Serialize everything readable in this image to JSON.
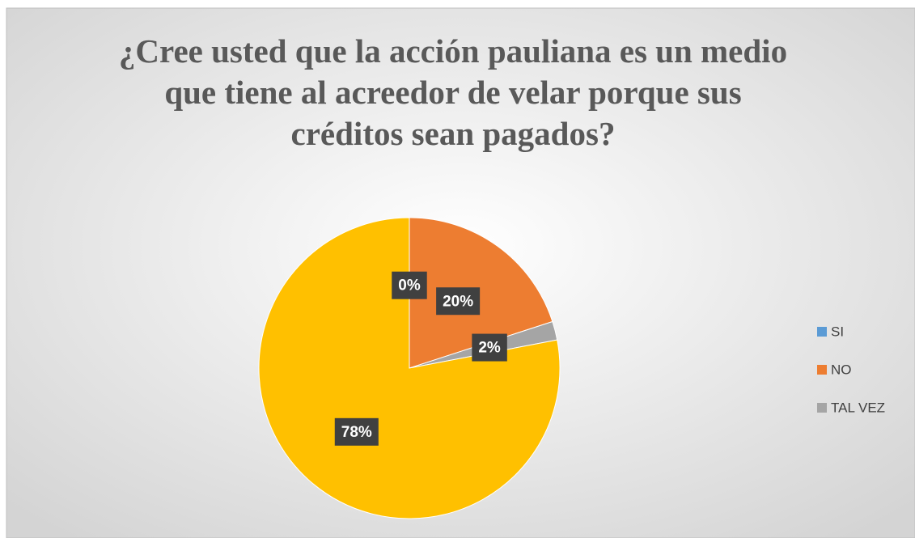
{
  "chart_data": {
    "type": "pie",
    "title": "¿Cree usted que la acción pauliana es un medio que tiene al acreedor de velar porque sus créditos sean pagados?",
    "categories": [
      "SI",
      "NO",
      "TAL VEZ",
      null
    ],
    "values": [
      0,
      20,
      2,
      78
    ],
    "value_labels": [
      "0%",
      "20%",
      "2%",
      "78%"
    ],
    "colors": [
      "#5b9bd5",
      "#ed7d31",
      "#a5a5a5",
      "#ffc000"
    ],
    "legend": "right"
  }
}
